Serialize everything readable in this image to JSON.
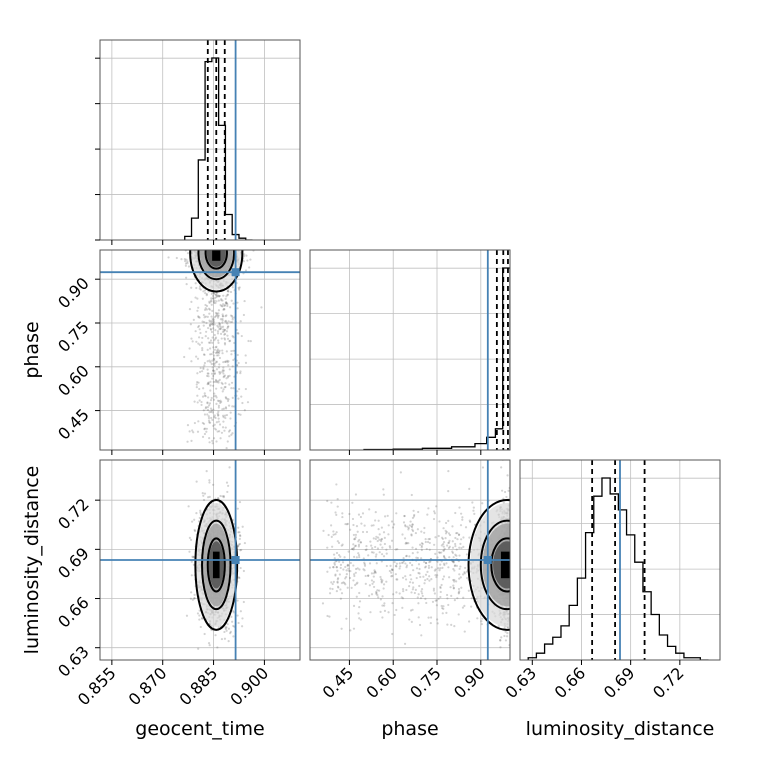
{
  "chart_data": {
    "type": "corner",
    "parameters": [
      "geocent_time",
      "phase",
      "luminosity_distance"
    ],
    "injection": {
      "geocent_time": 0.8915,
      "phase": 0.924,
      "luminosity_distance": 0.6835
    },
    "colors": {
      "truth": "#4682b4",
      "hist": "#000000",
      "grid": "#c0c0c0",
      "scatter": "#606060"
    },
    "ticks": {
      "geocent_time": [
        "0.855",
        "0.870",
        "0.885",
        "0.900"
      ],
      "phase": [
        "0.45",
        "0.60",
        "0.75",
        "0.90"
      ],
      "luminosity_distance": [
        "0.63",
        "0.66",
        "0.69",
        "0.72"
      ]
    },
    "axis_labels": {
      "x_bottom": [
        "geocent_time",
        "phase",
        "luminosity_distance"
      ],
      "y_left": [
        "phase",
        "luminosity_distance"
      ]
    },
    "ranges": {
      "geocent_time": [
        0.8515,
        0.9105
      ],
      "phase": [
        0.315,
        1.0
      ],
      "luminosity_distance": [
        0.6225,
        0.7445
      ]
    },
    "marginals": {
      "geocent_time": {
        "bin_edges": [
          0.8765,
          0.8785,
          0.8805,
          0.8825,
          0.8845,
          0.8865,
          0.8885,
          0.8905,
          0.8925,
          0.8945,
          0.8965
        ],
        "counts": [
          2,
          12,
          44,
          98,
          100,
          63,
          14,
          3,
          1,
          0
        ],
        "quantiles": [
          0.8833,
          0.8858,
          0.8883
        ]
      },
      "phase": {
        "bin_edges": [
          0.5,
          0.6,
          0.7,
          0.8,
          0.88,
          0.92,
          0.95,
          0.975,
          1.0
        ],
        "counts": [
          0.2,
          0.4,
          0.8,
          1.5,
          3,
          6,
          10,
          86
        ],
        "quantiles": [
          0.955,
          0.977,
          0.993
        ]
      },
      "luminosity_distance": {
        "bin_edges": [
          0.6275,
          0.6325,
          0.6375,
          0.6425,
          0.6475,
          0.6525,
          0.6575,
          0.6625,
          0.6675,
          0.6725,
          0.6775,
          0.6825,
          0.6875,
          0.6925,
          0.6975,
          0.7025,
          0.7075,
          0.7125,
          0.7175,
          0.7225,
          0.7275,
          0.7325,
          0.7375
        ],
        "counts": [
          1,
          3,
          7,
          10,
          15,
          24,
          36,
          56,
          72,
          80,
          73,
          66,
          55,
          43,
          30,
          20,
          11,
          6,
          3,
          1,
          1,
          0
        ],
        "quantiles": [
          0.6665,
          0.6805,
          0.6985
        ]
      }
    },
    "joint": {
      "geocent_time_vs_phase": {
        "center": [
          0.8858,
          0.99
        ],
        "spread": [
          0.0035,
          0.06
        ]
      },
      "geocent_time_vs_luminosity_distance": {
        "center": [
          0.8858,
          0.6805
        ],
        "spread": [
          0.0028,
          0.018
        ]
      },
      "phase_vs_luminosity_distance": {
        "center": [
          0.99,
          0.6805
        ],
        "spread": [
          0.06,
          0.018
        ]
      }
    }
  }
}
